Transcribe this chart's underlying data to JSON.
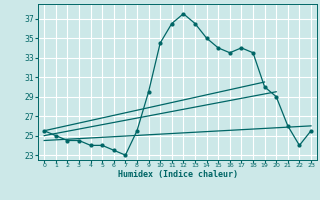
{
  "xlabel": "Humidex (Indice chaleur)",
  "background_color": "#cce8e8",
  "grid_color": "#ffffff",
  "line_color": "#006666",
  "xlim": [
    -0.5,
    23.5
  ],
  "ylim": [
    22.5,
    38.5
  ],
  "xticks": [
    0,
    1,
    2,
    3,
    4,
    5,
    6,
    7,
    8,
    9,
    10,
    11,
    12,
    13,
    14,
    15,
    16,
    17,
    18,
    19,
    20,
    21,
    22,
    23
  ],
  "yticks": [
    23,
    25,
    27,
    29,
    31,
    33,
    35,
    37
  ],
  "series1_x": [
    0,
    1,
    2,
    3,
    4,
    5,
    6,
    7,
    8,
    9,
    10,
    11,
    12,
    13,
    14,
    15,
    16,
    17,
    18,
    19,
    20,
    21,
    22,
    23
  ],
  "series1_y": [
    25.5,
    25.0,
    24.5,
    24.5,
    24.0,
    24.0,
    23.5,
    23.0,
    25.5,
    29.5,
    34.5,
    36.5,
    37.5,
    36.5,
    35.0,
    34.0,
    33.5,
    34.0,
    33.5,
    30.0,
    29.0,
    26.0,
    24.0,
    25.5
  ],
  "series2_x": [
    0,
    19
  ],
  "series2_y": [
    25.5,
    30.5
  ],
  "series3_x": [
    0,
    20
  ],
  "series3_y": [
    25.0,
    29.5
  ],
  "series4_x": [
    0,
    23
  ],
  "series4_y": [
    24.5,
    26.0
  ],
  "lw": 0.9,
  "ms": 2.0
}
